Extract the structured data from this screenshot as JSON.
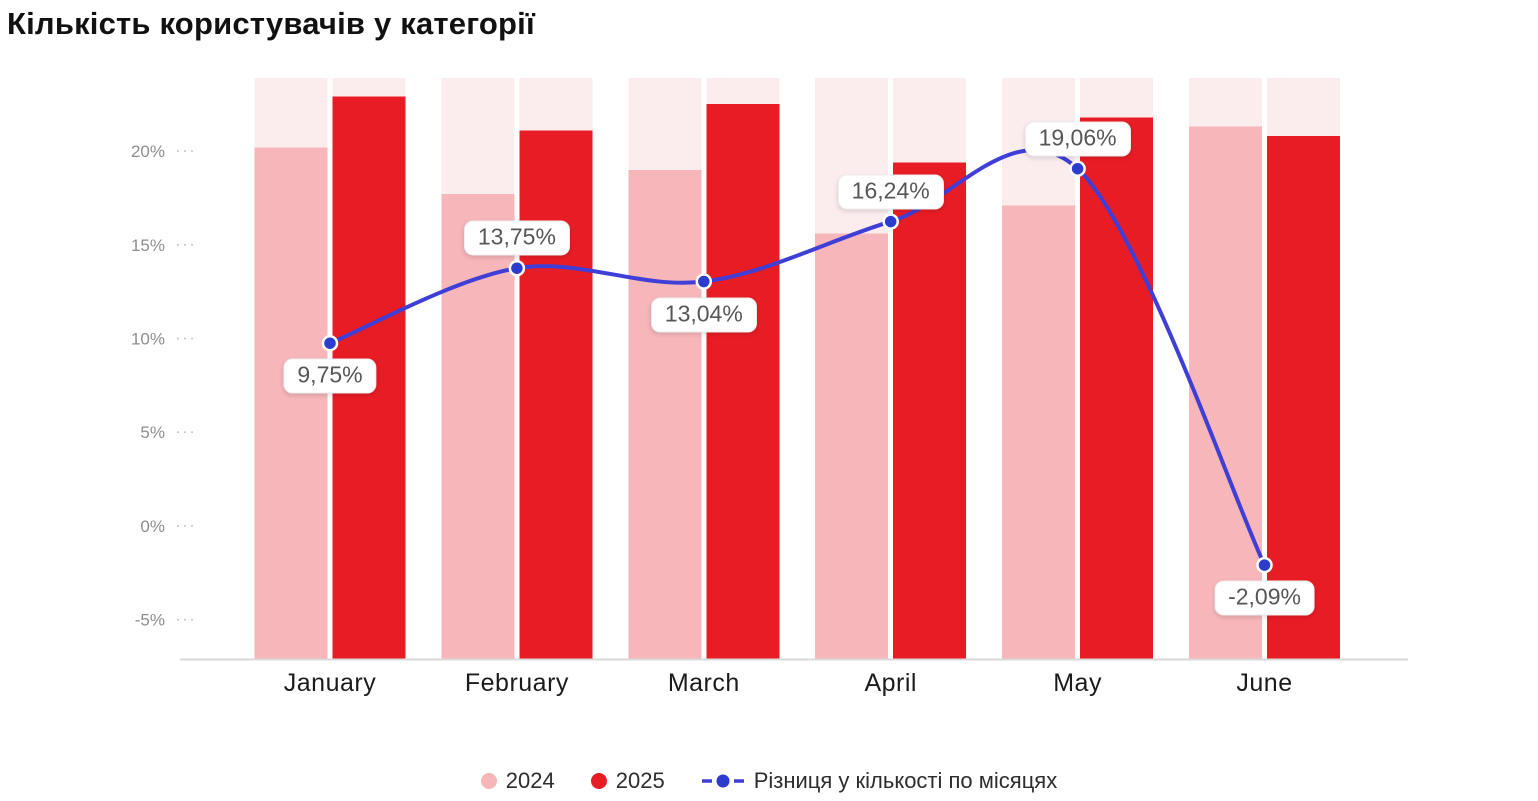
{
  "title": "Кількість користувачів у категорії",
  "colors": {
    "bar2024": "#f6b6ba",
    "bar2025": "#e81c25",
    "track": "#fbecee",
    "line": "#3f3ed6",
    "marker_fill": "#2c3ccf",
    "marker_ring": "#ffffff",
    "axis_line": "#d9d9d9",
    "tick_mark": "#c8c8c8",
    "y_tick_text": "#8e8e8e",
    "x_label_text": "#1b1b1b",
    "point_label_text": "#575757",
    "legend_text": "#2d2d2d",
    "title_text": "#111111"
  },
  "chart_data": {
    "type": "bar",
    "title": "Кількість користувачів у категорії",
    "categories": [
      "January",
      "February",
      "March",
      "April",
      "May",
      "June"
    ],
    "series": [
      {
        "name": "2024",
        "type": "bar",
        "color_key": "bar2024",
        "values": [
          20.2,
          17.7,
          19.0,
          15.6,
          17.1,
          21.3
        ]
      },
      {
        "name": "2025",
        "type": "bar",
        "color_key": "bar2025",
        "values": [
          22.9,
          21.1,
          22.5,
          19.4,
          21.8,
          20.8
        ]
      },
      {
        "name": "Різниця у кількості по місяцях",
        "type": "line",
        "color_key": "line",
        "values": [
          9.75,
          13.75,
          13.04,
          16.24,
          19.06,
          -2.09
        ],
        "point_labels": [
          "9,75%",
          "13,75%",
          "13,04%",
          "16,24%",
          "19,06%",
          "-2,09%"
        ],
        "label_positions": [
          "below",
          "above",
          "below",
          "above",
          "above",
          "below"
        ]
      }
    ],
    "y_axis": {
      "tick_labels": [
        "20%",
        "15%",
        "10%",
        "5%",
        "0%",
        "-5%"
      ],
      "tick_values": [
        20,
        15,
        10,
        5,
        0,
        -5
      ],
      "range": [
        -7.1,
        23.9
      ],
      "unit": "%"
    },
    "xlabel": "",
    "ylabel": "",
    "grid": false,
    "background_tracks": true,
    "legend_position": "bottom"
  },
  "legend": {
    "items": [
      {
        "label": "2024",
        "marker": "circle",
        "color_key": "bar2024"
      },
      {
        "label": "2025",
        "marker": "circle",
        "color_key": "bar2025"
      },
      {
        "label": "Різниця у кількості по місяцях",
        "marker": "line-dot",
        "color_key": "line"
      }
    ]
  }
}
